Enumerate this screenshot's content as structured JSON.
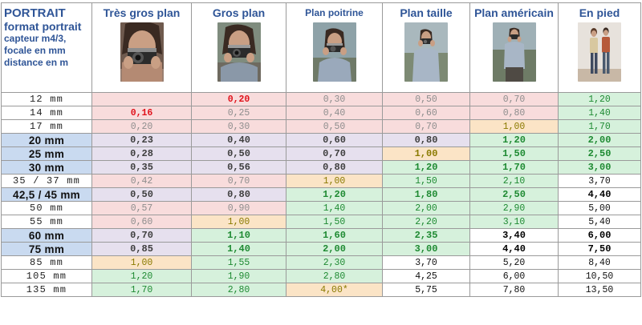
{
  "header": {
    "title": "PORTRAIT",
    "subtitle": "format portrait",
    "lines": [
      "capteur m4/3,",
      "focale en mm",
      "distance en m"
    ]
  },
  "columns": [
    {
      "label": "Très gros plan",
      "photo": "person-with-camera-close-up"
    },
    {
      "label": "Gros plan",
      "photo": "person-with-camera-head-shot"
    },
    {
      "label": "Plan poitrine",
      "photo": "person-with-camera-chest-shot"
    },
    {
      "label": "Plan taille",
      "photo": "person-with-camera-waist-shot"
    },
    {
      "label": "Plan américain",
      "photo": "person-with-camera-american-shot"
    },
    {
      "label": "En pied",
      "photo": "two-people-full-length"
    }
  ],
  "rows": [
    {
      "focal": "12 mm",
      "key": false,
      "cells": [
        "",
        "0,20",
        "0,30",
        "0,50",
        "0,70",
        "1,20"
      ]
    },
    {
      "focal": "14 mm",
      "key": false,
      "cells": [
        "0,16",
        "0,25",
        "0,40",
        "0,60",
        "0,80",
        "1,40"
      ]
    },
    {
      "focal": "17 mm",
      "key": false,
      "cells": [
        "0,20",
        "0,30",
        "0,50",
        "0,70",
        "1,00",
        "1,70"
      ]
    },
    {
      "focal": "20 mm",
      "key": true,
      "cells": [
        "0,23",
        "0,40",
        "0,60",
        "0,80",
        "1,20",
        "2,00"
      ]
    },
    {
      "focal": "25 mm",
      "key": true,
      "cells": [
        "0,28",
        "0,50",
        "0,70",
        "1,00",
        "1,50",
        "2,50"
      ]
    },
    {
      "focal": "30 mm",
      "key": true,
      "cells": [
        "0,35",
        "0,56",
        "0,80",
        "1,20",
        "1,70",
        "3,00"
      ]
    },
    {
      "focal": "35 / 37 mm",
      "key": false,
      "cells": [
        "0,42",
        "0,70",
        "1,00",
        "1,50",
        "2,10",
        "3,70"
      ]
    },
    {
      "focal": "42,5 / 45 mm",
      "key": true,
      "cells": [
        "0,50",
        "0,80",
        "1,20",
        "1,80",
        "2,50",
        "4,40"
      ]
    },
    {
      "focal": "50 mm",
      "key": false,
      "cells": [
        "0,57",
        "0,90",
        "1,40",
        "2,00",
        "2,90",
        "5,00"
      ]
    },
    {
      "focal": "55 mm",
      "key": false,
      "cells": [
        "0,60",
        "1,00",
        "1,50",
        "2,20",
        "3,10",
        "5,40"
      ]
    },
    {
      "focal": "60 mm",
      "key": true,
      "cells": [
        "0,70",
        "1,10",
        "1,60",
        "2,35",
        "3,40",
        "6,00"
      ]
    },
    {
      "focal": "75 mm",
      "key": true,
      "cells": [
        "0,85",
        "1,40",
        "2,00",
        "3,00",
        "4,40",
        "7,50"
      ]
    },
    {
      "focal": "85 mm",
      "key": false,
      "cells": [
        "1,00",
        "1,55",
        "2,30",
        "3,70",
        "5,20",
        "8,40"
      ]
    },
    {
      "focal": "105 mm",
      "key": false,
      "cells": [
        "1,20",
        "1,90",
        "2,80",
        "4,25",
        "6,00",
        "10,50"
      ]
    },
    {
      "focal": "135 mm",
      "key": false,
      "cells": [
        "1,70",
        "2,80",
        "4,00*",
        "5,75",
        "7,80",
        "13,50"
      ]
    }
  ],
  "colors": {
    "pink": "#f8dcdc",
    "lavender": "#e6e0ee",
    "peach": "#fbe4c6",
    "green": "#d6f1dc",
    "key_focal": "#c9daf0",
    "header_text": "#2f5597",
    "red_value": "#e0121b"
  }
}
